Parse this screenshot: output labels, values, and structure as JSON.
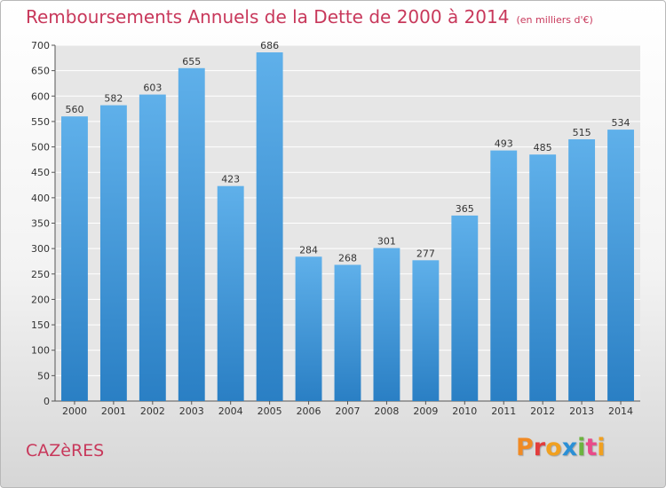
{
  "chart_data": {
    "type": "bar",
    "title": "Remboursements Annuels de la Dette de 2000 à 2014",
    "subtitle": "(en milliers d'€)",
    "categories": [
      "2000",
      "2001",
      "2002",
      "2003",
      "2004",
      "2005",
      "2006",
      "2007",
      "2008",
      "2009",
      "2010",
      "2011",
      "2012",
      "2013",
      "2014"
    ],
    "values": [
      560,
      582,
      603,
      655,
      423,
      686,
      284,
      268,
      301,
      277,
      365,
      493,
      485,
      515,
      534
    ],
    "data_labels": [
      "560",
      "582",
      "603",
      "655",
      "423",
      "686",
      "284",
      "268",
      "301",
      "277",
      "365",
      "493",
      "485",
      "515",
      "534"
    ],
    "yticks": [
      "0",
      "50",
      "100",
      "150",
      "200",
      "250",
      "300",
      "350",
      "400",
      "450",
      "500",
      "550",
      "600",
      "650",
      "700"
    ],
    "ylim": [
      0,
      700
    ],
    "ytick_step": 50,
    "grid": true,
    "bar_color": "#3f97da"
  },
  "footer": {
    "city": "CAZèRES",
    "logo": "Proxiti"
  },
  "colors": {
    "title": "#c8385b",
    "logo_letters": [
      "#f08a24",
      "#e23c3c",
      "#f0a020",
      "#2a8fd6",
      "#6cb33f",
      "#e84b8a",
      "#f0a020"
    ]
  }
}
